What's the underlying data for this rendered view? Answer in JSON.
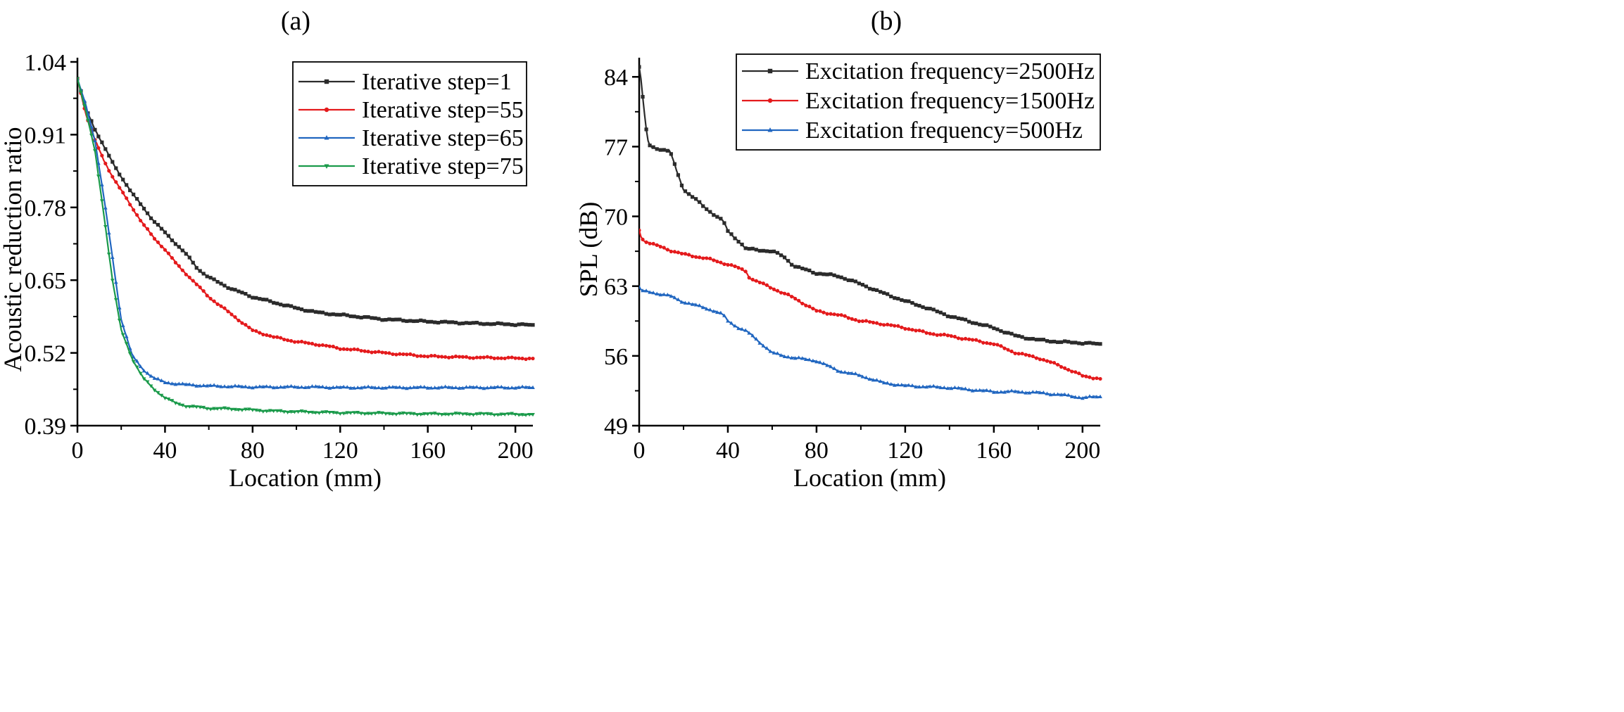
{
  "chart_data": [
    {
      "panel_label": "(a)",
      "type": "line",
      "title": "",
      "xlabel": "Location (mm)",
      "ylabel": "Acoustic reduction ratio",
      "xlim": [
        0,
        208
      ],
      "ylim": [
        0.39,
        1.04
      ],
      "xticks": [
        0,
        40,
        80,
        120,
        160,
        200
      ],
      "yticks": [
        0.39,
        0.52,
        0.65,
        0.78,
        0.91,
        1.04
      ],
      "ytick_labels": [
        "0.39",
        "0.52",
        "0.65",
        "0.78",
        "0.91",
        "1.04"
      ],
      "legend_position": "top-right",
      "x": [
        0,
        4,
        8,
        12,
        16,
        20,
        25,
        30,
        35,
        40,
        45,
        50,
        55,
        60,
        70,
        80,
        90,
        100,
        110,
        120,
        140,
        160,
        180,
        208
      ],
      "series": [
        {
          "name": "Iterative step=1",
          "color": "#2b2b2b",
          "marker": "square",
          "values": [
            1.01,
            0.955,
            0.92,
            0.89,
            0.86,
            0.835,
            0.805,
            0.78,
            0.755,
            0.735,
            0.715,
            0.695,
            0.67,
            0.655,
            0.635,
            0.62,
            0.61,
            0.6,
            0.592,
            0.588,
            0.58,
            0.576,
            0.573,
            0.57
          ]
        },
        {
          "name": "Iterative step=55",
          "color": "#e41a1c",
          "marker": "circle",
          "values": [
            1.01,
            0.945,
            0.9,
            0.865,
            0.835,
            0.81,
            0.78,
            0.75,
            0.725,
            0.705,
            0.68,
            0.66,
            0.64,
            0.62,
            0.59,
            0.56,
            0.548,
            0.54,
            0.535,
            0.528,
            0.52,
            0.514,
            0.512,
            0.51
          ]
        },
        {
          "name": "Iterative step=65",
          "color": "#2066c0",
          "marker": "triangle-up",
          "values": [
            1.01,
            0.96,
            0.9,
            0.8,
            0.69,
            0.58,
            0.515,
            0.49,
            0.475,
            0.467,
            0.465,
            0.463,
            0.462,
            0.461,
            0.46,
            0.459,
            0.459,
            0.459,
            0.459,
            0.458,
            0.458,
            0.458,
            0.458,
            0.458
          ]
        },
        {
          "name": "Iterative step=75",
          "color": "#1a9a4a",
          "marker": "triangle-down",
          "values": [
            1.01,
            0.95,
            0.88,
            0.77,
            0.65,
            0.56,
            0.51,
            0.475,
            0.455,
            0.44,
            0.43,
            0.425,
            0.423,
            0.421,
            0.42,
            0.418,
            0.416,
            0.415,
            0.414,
            0.413,
            0.412,
            0.411,
            0.411,
            0.41
          ]
        }
      ]
    },
    {
      "panel_label": "(b)",
      "type": "line",
      "title": "",
      "xlabel": "Location (mm)",
      "ylabel": "SPL (dB)",
      "xlim": [
        0,
        208
      ],
      "ylim": [
        49,
        85.5
      ],
      "xticks": [
        0,
        40,
        80,
        120,
        160,
        200
      ],
      "yticks": [
        49,
        56,
        63,
        70,
        77,
        84
      ],
      "ytick_labels": [
        "49",
        "56",
        "63",
        "70",
        "77",
        "84"
      ],
      "legend_position": "top-right",
      "x": [
        0,
        1,
        2,
        3,
        4,
        5,
        14,
        17,
        20,
        25,
        30,
        35,
        38,
        40,
        45,
        48,
        50,
        60,
        65,
        70,
        80,
        90,
        100,
        110,
        120,
        130,
        140,
        150,
        160,
        170,
        180,
        190,
        200,
        208
      ],
      "series": [
        {
          "name": "Excitation frequency=2500Hz",
          "color": "#2b2b2b",
          "marker": "square",
          "values": [
            85,
            83.5,
            81,
            79,
            77.5,
            77,
            76.5,
            74.5,
            72.7,
            71.8,
            70.8,
            70,
            69.5,
            68.5,
            67.5,
            66.8,
            66.7,
            66.5,
            66,
            65,
            64.3,
            64,
            63.2,
            62.3,
            61.5,
            60.8,
            60,
            59.4,
            58.8,
            58,
            57.6,
            57.4,
            57.3,
            57.2
          ]
        },
        {
          "name": "Excitation frequency=1500Hz",
          "color": "#e41a1c",
          "marker": "circle",
          "values": [
            68.6,
            67.8,
            67.6,
            67.5,
            67.4,
            67.3,
            66.6,
            66.4,
            66.2,
            66,
            65.8,
            65.5,
            65.3,
            65.2,
            64.8,
            64.5,
            63.8,
            62.8,
            62.3,
            61.8,
            60.5,
            60.1,
            59.5,
            59.2,
            58.8,
            58.3,
            58,
            57.6,
            57.2,
            56.3,
            55.8,
            55,
            54,
            53.7
          ]
        },
        {
          "name": "Excitation frequency=500Hz",
          "color": "#2066c0",
          "marker": "triangle-up",
          "values": [
            62.9,
            62.6,
            62.5,
            62.5,
            62.4,
            62.4,
            62,
            61.7,
            61.4,
            61.1,
            60.8,
            60.4,
            60.1,
            59.5,
            58.8,
            58.5,
            58.2,
            56.3,
            56,
            55.8,
            55.5,
            54.5,
            54,
            53.3,
            53,
            52.9,
            52.8,
            52.6,
            52.4,
            52.4,
            52.3,
            52.1,
            51.8,
            51.9
          ]
        }
      ]
    }
  ]
}
